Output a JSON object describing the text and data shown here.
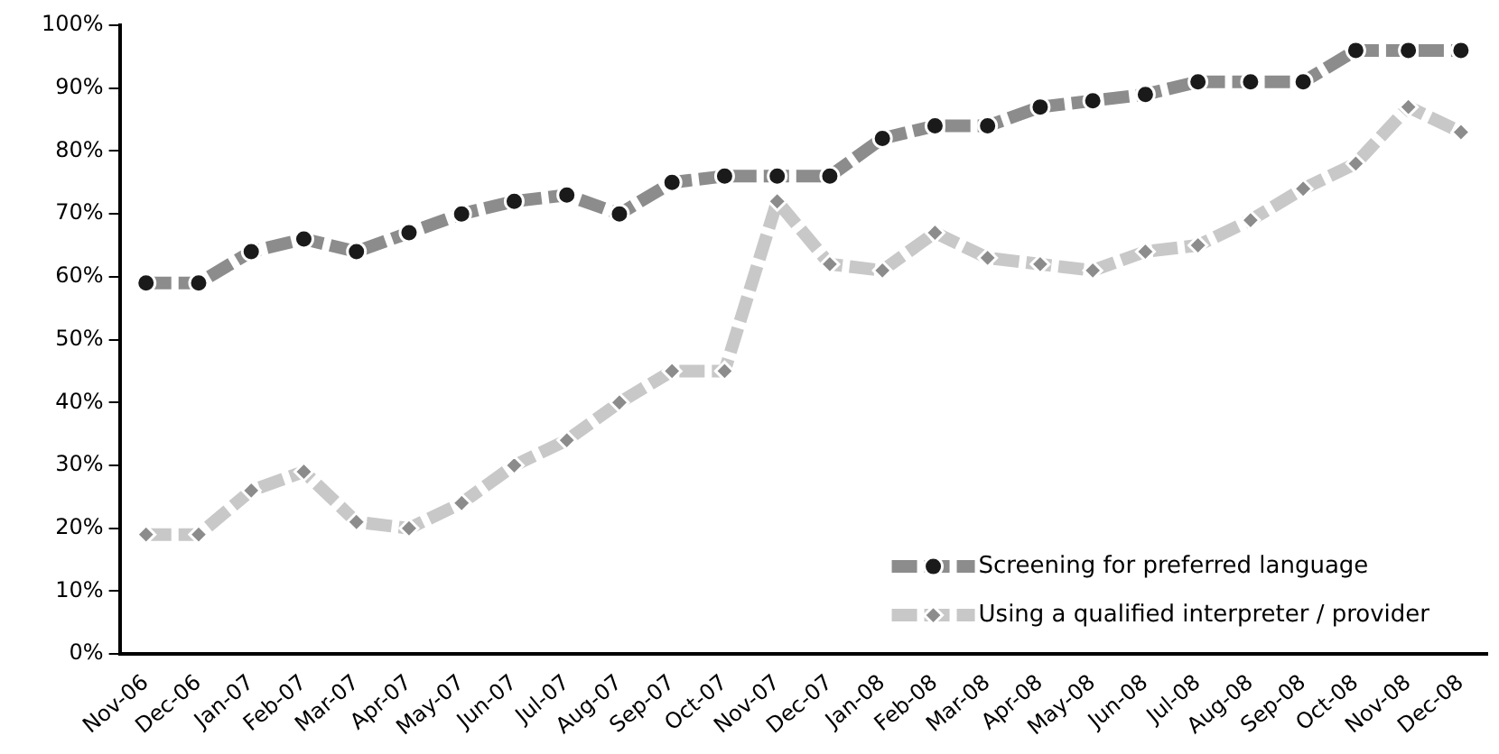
{
  "chart_data": {
    "type": "line",
    "categories": [
      "Nov-06",
      "Dec-06",
      "Jan-07",
      "Feb-07",
      "Mar-07",
      "Apr-07",
      "May-07",
      "Jun-07",
      "Jul-07",
      "Aug-07",
      "Sep-07",
      "Oct-07",
      "Nov-07",
      "Dec-07",
      "Jan-08",
      "Feb-08",
      "Mar-08",
      "Apr-08",
      "May-08",
      "Jun-08",
      "Jul-08",
      "Aug-08",
      "Sep-08",
      "Oct-08",
      "Nov-08",
      "Dec-08"
    ],
    "series": [
      {
        "name": "Screening for preferred language",
        "color": "#8c8c8c",
        "marker": "circle",
        "values": [
          59,
          59,
          64,
          66,
          64,
          67,
          70,
          72,
          73,
          70,
          75,
          76,
          76,
          76,
          82,
          84,
          84,
          87,
          88,
          89,
          91,
          91,
          91,
          96,
          96,
          96
        ]
      },
      {
        "name": "Using a qualified interpreter / provider",
        "color": "#c8c8c8",
        "marker": "diamond",
        "values": [
          19,
          19,
          26,
          29,
          21,
          20,
          24,
          30,
          34,
          40,
          45,
          45,
          72,
          62,
          61,
          67,
          63,
          62,
          61,
          64,
          65,
          69,
          74,
          78,
          87,
          83
        ]
      }
    ],
    "ylim": [
      0,
      100
    ],
    "yticks": [
      {
        "value": 0,
        "label": "0%"
      },
      {
        "value": 10,
        "label": "10%"
      },
      {
        "value": 20,
        "label": "20%"
      },
      {
        "value": 30,
        "label": "30%"
      },
      {
        "value": 40,
        "label": "40%"
      },
      {
        "value": 50,
        "label": "50%"
      },
      {
        "value": 60,
        "label": "60%"
      },
      {
        "value": 70,
        "label": "70%"
      },
      {
        "value": 80,
        "label": "80%"
      },
      {
        "value": 90,
        "label": "90%"
      },
      {
        "value": 100,
        "label": "100%"
      }
    ],
    "grid": false,
    "legend": "bottom right",
    "line_style": "dashed"
  }
}
